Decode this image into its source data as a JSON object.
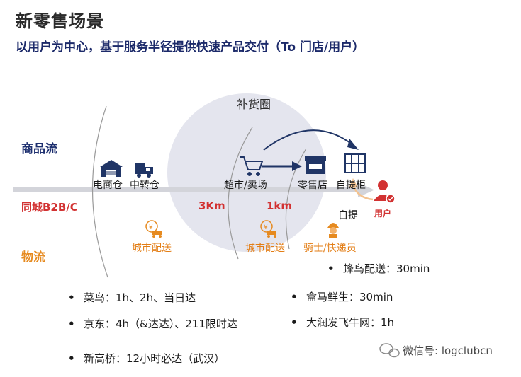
{
  "header": {
    "title": "新零售场景",
    "subtitle": "以用户为中心，基于服务半径提供快速产品交付（To 门店/用户）"
  },
  "left_labels": {
    "goods_flow": "商品流",
    "same_city": "同城B2B/C",
    "logistics": "物流"
  },
  "circle_label": "补货圈",
  "nodes": {
    "ecommerce_warehouse": "电商仓",
    "transfer_warehouse": "中转仓",
    "supermarket": "超市/卖场",
    "retail_store": "零售店",
    "locker": "自提柜",
    "self_pickup": "自提",
    "user": "用户"
  },
  "distances": {
    "d3km": "3Km",
    "d1km": "1km"
  },
  "logistics_nodes": {
    "city_delivery_1": "城市配送",
    "city_delivery_2": "城市配送",
    "rider": "骑士/快递员"
  },
  "bullets_left": [
    "菜鸟：1h、2h、当日达",
    "京东：4h（&达达）、211限时达",
    "新高桥：12小时必达（武汉）"
  ],
  "bullets_right": [
    "蜂鸟配送：30min",
    "盒马鲜生：30min",
    "大润发飞牛网：1h"
  ],
  "bullet_symbol": "•",
  "watermark": "微信号: logclubcn",
  "colors": {
    "navy": "#1d2f6f",
    "red": "#d23232",
    "orange": "#e68a1f",
    "circle": "#e4e5ee",
    "arrow_gray": "#cfd0d6"
  }
}
